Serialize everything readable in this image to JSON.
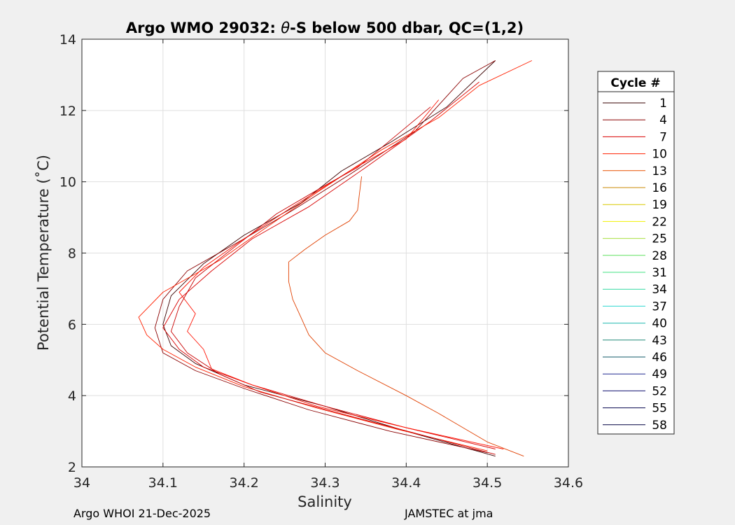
{
  "chart_data": {
    "type": "line",
    "title_prefix": "Argo WMO 29032: ",
    "title_theta": "θ",
    "title_suffix": "-S below 500 dbar,  QC=(1,2)",
    "xlabel": "Salinity",
    "ylabel": "Potential Temperature (˚C)",
    "xlim": [
      34.0,
      34.6
    ],
    "ylim": [
      2,
      14
    ],
    "xticks": [
      "34",
      "34.1",
      "34.2",
      "34.3",
      "34.4",
      "34.5",
      "34.6"
    ],
    "yticks": [
      "2",
      "4",
      "6",
      "8",
      "10",
      "12",
      "14"
    ],
    "grid": true,
    "legend": {
      "title": "Cycle #",
      "placement": "right",
      "entries": [
        {
          "label": "1",
          "color": "#3a0000"
        },
        {
          "label": "4",
          "color": "#8a0000"
        },
        {
          "label": "7",
          "color": "#d80000"
        },
        {
          "label": "10",
          "color": "#ff2000"
        },
        {
          "label": "13",
          "color": "#e85000"
        },
        {
          "label": "16",
          "color": "#c88800"
        },
        {
          "label": "19",
          "color": "#d8c800"
        },
        {
          "label": "22",
          "color": "#f0f000"
        },
        {
          "label": "25",
          "color": "#a8e040"
        },
        {
          "label": "28",
          "color": "#60e060"
        },
        {
          "label": "31",
          "color": "#40e080"
        },
        {
          "label": "34",
          "color": "#30d8a0"
        },
        {
          "label": "37",
          "color": "#30d8d0"
        },
        {
          "label": "40",
          "color": "#20b8b0"
        },
        {
          "label": "43",
          "color": "#208878"
        },
        {
          "label": "46",
          "color": "#105868"
        },
        {
          "label": "49",
          "color": "#202890"
        },
        {
          "label": "52",
          "color": "#101070"
        },
        {
          "label": "55",
          "color": "#080850"
        },
        {
          "label": "58",
          "color": "#000040"
        }
      ]
    },
    "series": [
      {
        "color": "#3a0000",
        "points": [
          [
            34.51,
            2.3
          ],
          [
            34.4,
            3.0
          ],
          [
            34.3,
            3.7
          ],
          [
            34.2,
            4.3
          ],
          [
            34.14,
            4.9
          ],
          [
            34.11,
            5.4
          ],
          [
            34.1,
            6.0
          ],
          [
            34.11,
            6.8
          ],
          [
            34.15,
            7.7
          ],
          [
            34.2,
            8.5
          ],
          [
            34.27,
            9.4
          ],
          [
            34.32,
            10.3
          ],
          [
            34.38,
            11.1
          ],
          [
            34.45,
            12.1
          ],
          [
            34.51,
            13.4
          ]
        ]
      },
      {
        "color": "#8a0000",
        "points": [
          [
            34.5,
            2.4
          ],
          [
            34.38,
            3.0
          ],
          [
            34.28,
            3.6
          ],
          [
            34.2,
            4.2
          ],
          [
            34.14,
            4.7
          ],
          [
            34.1,
            5.2
          ],
          [
            34.09,
            5.9
          ],
          [
            34.1,
            6.7
          ],
          [
            34.13,
            7.5
          ],
          [
            34.2,
            8.4
          ],
          [
            34.26,
            9.2
          ],
          [
            34.33,
            10.2
          ],
          [
            34.41,
            11.4
          ],
          [
            34.47,
            12.9
          ],
          [
            34.51,
            13.4
          ]
        ]
      },
      {
        "color": "#d80000",
        "points": [
          [
            34.51,
            2.5
          ],
          [
            34.4,
            3.1
          ],
          [
            34.3,
            3.7
          ],
          [
            34.21,
            4.3
          ],
          [
            34.15,
            4.8
          ],
          [
            34.12,
            5.3
          ],
          [
            34.1,
            5.9
          ],
          [
            34.12,
            6.7
          ],
          [
            34.16,
            7.5
          ],
          [
            34.21,
            8.4
          ],
          [
            34.28,
            9.3
          ],
          [
            34.35,
            10.4
          ],
          [
            34.43,
            11.7
          ],
          [
            34.49,
            12.8
          ]
        ]
      },
      {
        "color": "#ff2000",
        "points": [
          [
            34.5,
            2.45
          ],
          [
            34.39,
            3.05
          ],
          [
            34.29,
            3.65
          ],
          [
            34.2,
            4.25
          ],
          [
            34.14,
            4.8
          ],
          [
            34.1,
            5.3
          ],
          [
            34.08,
            5.7
          ],
          [
            34.07,
            6.2
          ],
          [
            34.1,
            6.9
          ],
          [
            34.17,
            7.8
          ],
          [
            34.22,
            8.6
          ],
          [
            34.29,
            9.7
          ],
          [
            34.37,
            10.9
          ],
          [
            34.44,
            11.8
          ],
          [
            34.49,
            12.7
          ],
          [
            34.555,
            13.4
          ]
        ]
      },
      {
        "color": "#ff1000",
        "points": [
          [
            34.52,
            2.5
          ],
          [
            34.4,
            3.1
          ],
          [
            34.29,
            3.7
          ],
          [
            34.21,
            4.3
          ],
          [
            34.16,
            4.75
          ],
          [
            34.15,
            5.3
          ],
          [
            34.13,
            5.8
          ],
          [
            34.14,
            6.3
          ],
          [
            34.12,
            6.9
          ],
          [
            34.15,
            7.6
          ],
          [
            34.2,
            8.4
          ],
          [
            34.26,
            9.3
          ],
          [
            34.33,
            10.3
          ],
          [
            34.4,
            11.2
          ],
          [
            34.44,
            12.3
          ]
        ]
      },
      {
        "color": "#c80000",
        "points": [
          [
            34.51,
            2.35
          ],
          [
            34.41,
            2.95
          ],
          [
            34.31,
            3.55
          ],
          [
            34.22,
            4.1
          ],
          [
            34.17,
            4.6
          ],
          [
            34.13,
            5.2
          ],
          [
            34.11,
            5.8
          ],
          [
            34.12,
            6.5
          ],
          [
            34.14,
            7.3
          ],
          [
            34.19,
            8.2
          ],
          [
            34.24,
            9.1
          ],
          [
            34.3,
            9.9
          ],
          [
            34.34,
            10.4
          ],
          [
            34.43,
            12.1
          ]
        ]
      },
      {
        "color": "#e04000",
        "points": [
          [
            34.545,
            2.3
          ],
          [
            34.5,
            2.7
          ],
          [
            34.44,
            3.5
          ],
          [
            34.4,
            4.0
          ],
          [
            34.34,
            4.7
          ],
          [
            34.3,
            5.2
          ],
          [
            34.28,
            5.7
          ],
          [
            34.27,
            6.2
          ],
          [
            34.26,
            6.7
          ],
          [
            34.255,
            7.2
          ],
          [
            34.255,
            7.75
          ],
          [
            34.275,
            8.1
          ],
          [
            34.3,
            8.5
          ],
          [
            34.33,
            8.9
          ],
          [
            34.34,
            9.2
          ],
          [
            34.342,
            9.6
          ],
          [
            34.345,
            10.15
          ]
        ]
      }
    ]
  },
  "footer": {
    "left": "Argo WHOI 21-Dec-2025",
    "right": "JAMSTEC at jma"
  }
}
